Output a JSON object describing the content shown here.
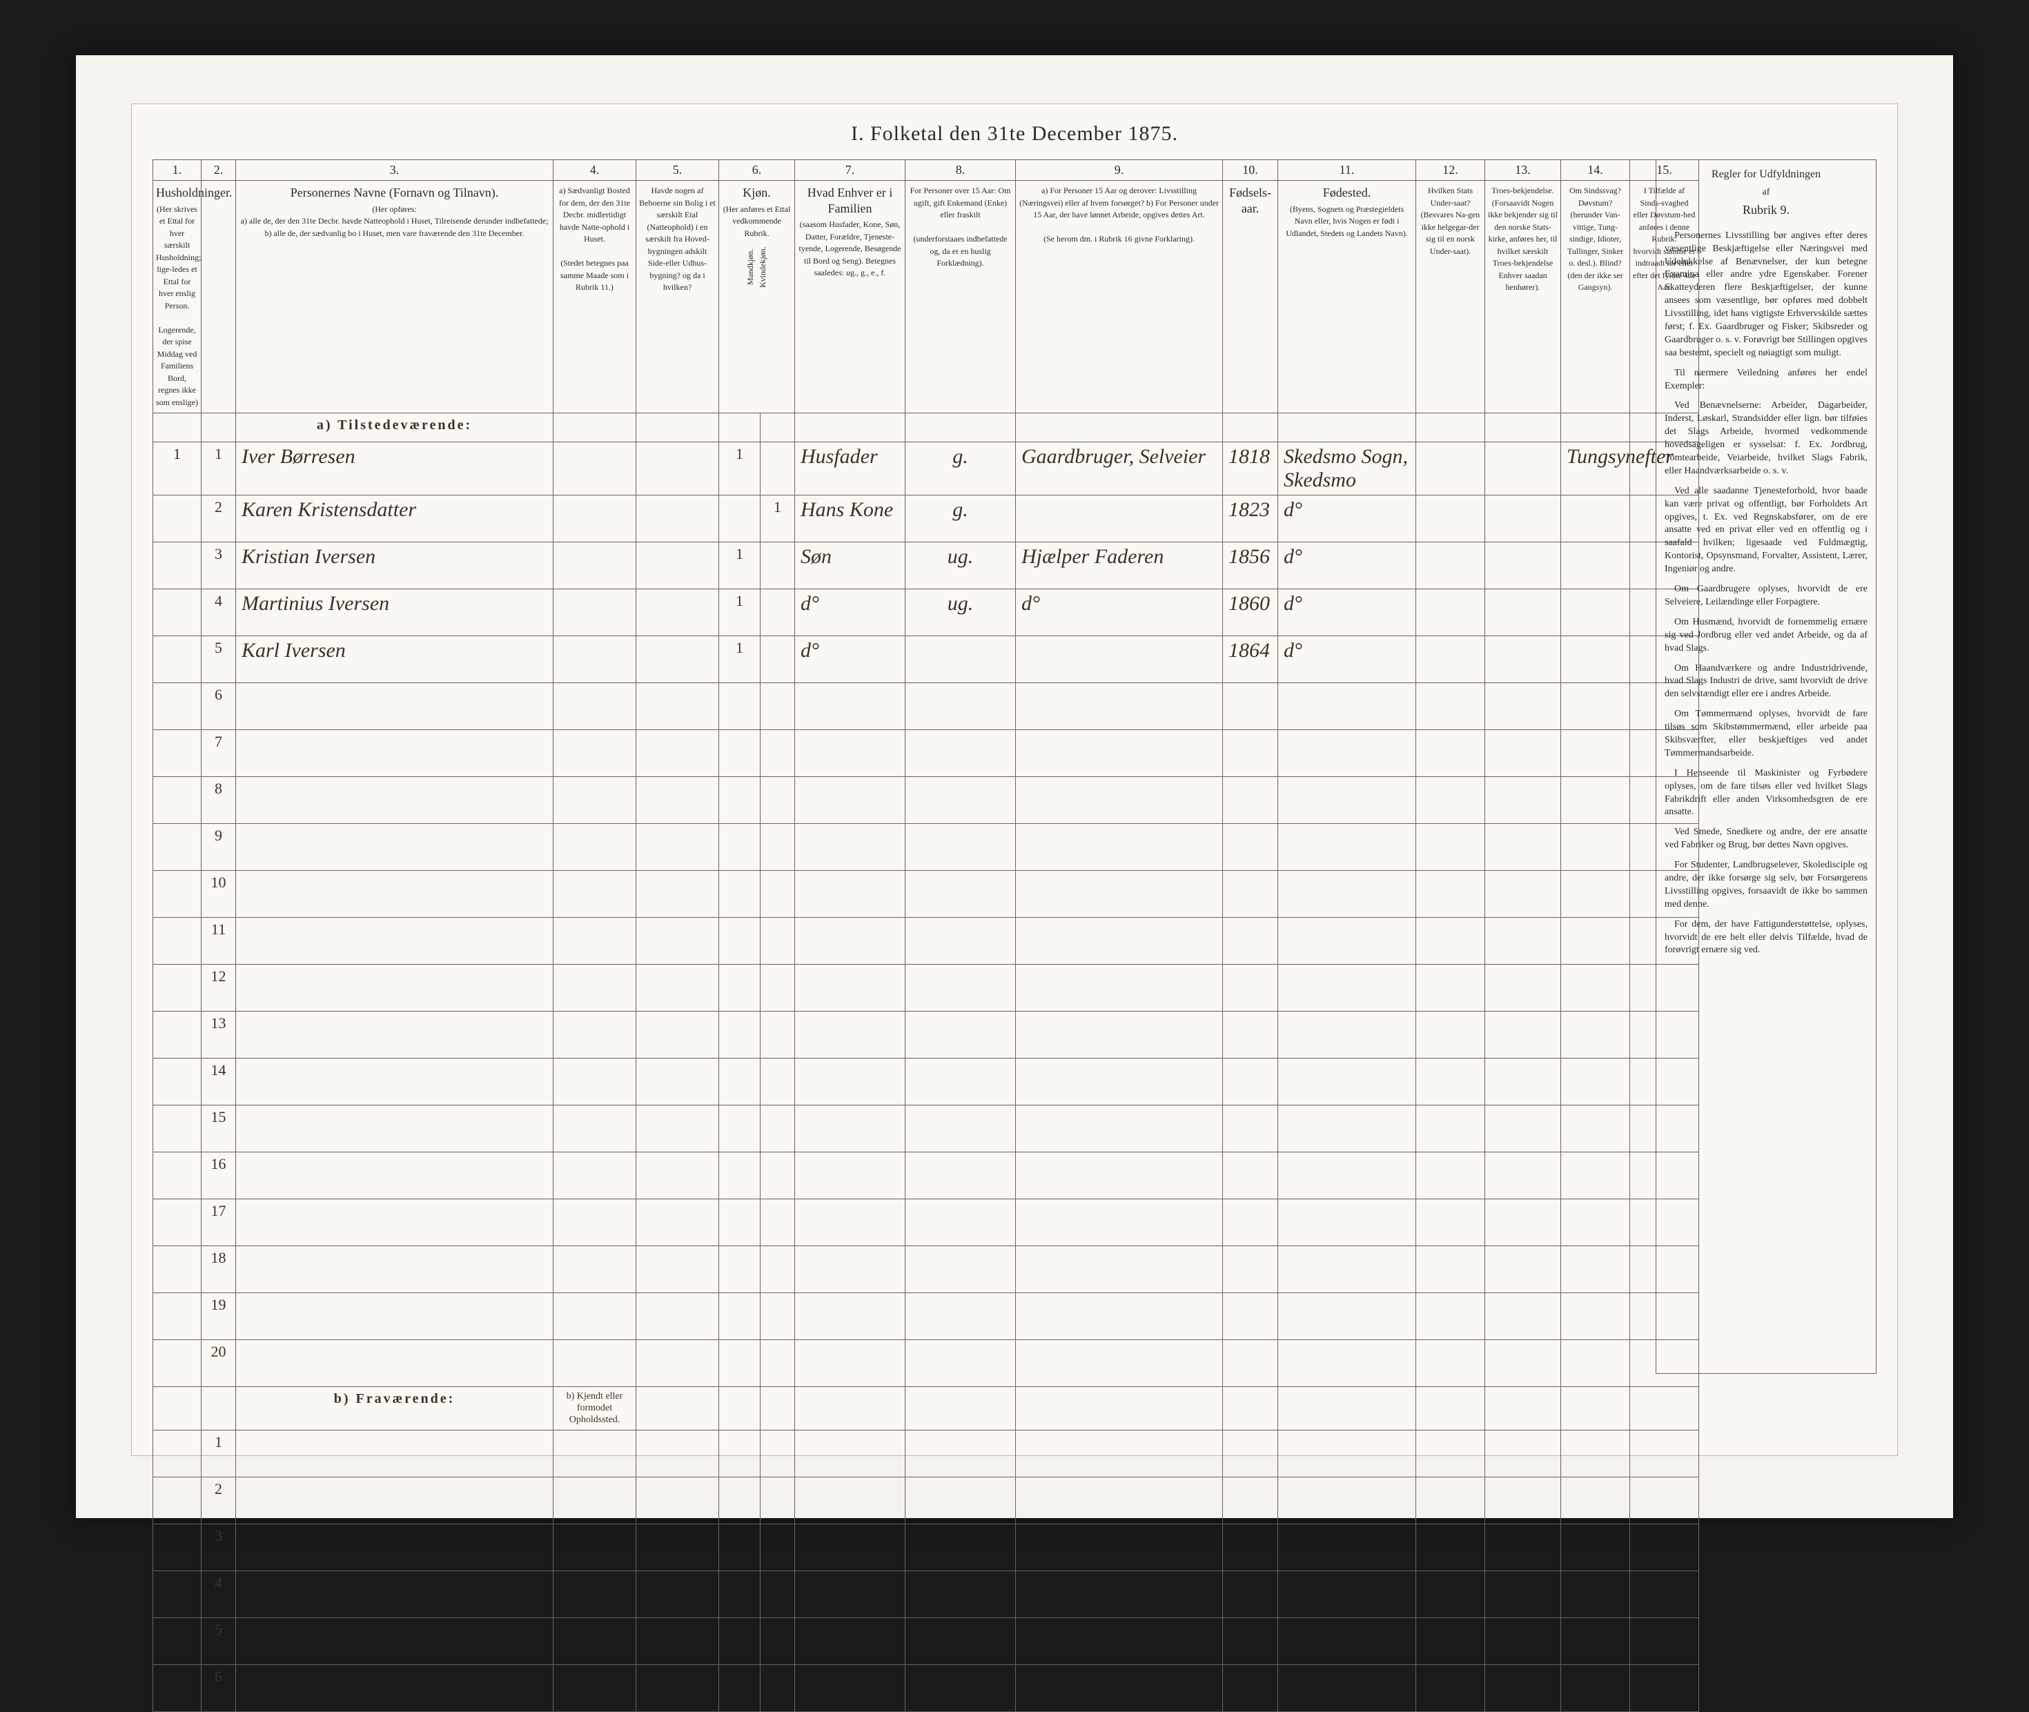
{
  "title": "I.  Folketal den 31te December 1875.",
  "columns": {
    "nums": [
      "1.",
      "2.",
      "3.",
      "4.",
      "5.",
      "6.",
      "7.",
      "8.",
      "9.",
      "10.",
      "11.",
      "12.",
      "13.",
      "14.",
      "15."
    ],
    "widths": [
      70,
      50,
      460,
      120,
      120,
      60,
      50,
      160,
      160,
      300,
      80,
      200,
      100,
      110,
      100,
      100
    ],
    "headers": [
      "Husholdninger.",
      "",
      "Personernes Navne (Fornavn og Tilnavn).",
      "a) Sædvanligt Bosted for dem, der den 31te Decbr. midlertidigt havde Natte-ophold i Huset.",
      "Havde nogen af Beboerne sin Bolig i et særskilt Etal (Natteophold) i en særskilt fra Hoved-bygningen adskilt Side-eller Udhus-bygning? og da i hvilken?",
      "Kjøn.",
      "",
      "Hvad Enhver er i Familien",
      "For Personer over 15 Aar: Om ugift, gift Enkemand (Enke) eller fraskilt",
      "a) For Personer 15 Aar og derover: Livsstilling (Næringsvei) eller af hvem forsørget? b) For Personer under 15 Aar, der have lønnet Arbeide, opgives dettes Art.",
      "Fødsels-aar.",
      "Fødested.",
      "Hvilken Stats Under-saat?",
      "Troes-bekjendelse.",
      "Om Sindssvag? Døvstum?",
      "I Tilfælde af Sinds-svaghed eller Døvstum-hed anføres i denne Rubrik."
    ],
    "sub1": "(Her skrives et Ettal for hver særskilt Husholdning; lige-ledes et Ettal for hver enslig Person.",
    "sub1b": "Logerende, der spise Middag ved Familiens Bord, regnes ikke som enslige)",
    "sub3a": "(Her opføres:",
    "sub3b": "a) alle de, der den 31te Decbr. havde Natteophold i Huset, Tilreisende derunder indbefattede;",
    "sub3c": "b) alle de, der sædvanlig bo i Huset, men vare fraværende den 31te December.",
    "sub4": "(Stedet betegnes paa samme Maade som i Rubrik 11.)",
    "sub6a": "Mandkjøn.",
    "sub6b": "Kvindekjøn.",
    "sub7": "(Her anføres et Ettal vedkommende Rubrik.",
    "sub8": "(saasom Husfader, Kone, Søn, Datter, Forældre, Tjeneste-tyende, Logerende, Besøgende til Bord og Seng). Betegnes saaledes: ug., g., e., f.",
    "sub9": "(underforstaaes indbefattede og, da er en huslig Forklædning).",
    "sub10": "(Se herom dm. i Rubrik 16 givne Forklaring).",
    "sub11": "(Byens, Sognets og Præstegieldets Navn eller, hvis Nogen er født i Udlandet, Stedets og Landets Navn).",
    "sub12": "(Besvares Na-gen ikke helgegar-der sig til en norsk Under-saat).",
    "sub13": "(Forsaavidt Nogen ikke bekjender sig til den norske Stats-kirke, anføres her, til hvilket særskilt Troes-bekjendelse Enhver saadan henhører).",
    "sub14": "(herunder Van-vittige, Tung-sindige, Idioter, Tullinger, Sinker o. desl.). Blind? (den der ikke ser Gangsyn).",
    "sub15": "hvorvidt samme er indtraadt før eller efter det fyldte 4de Aar."
  },
  "sections": {
    "a": "a) Tilstedeværende:",
    "b": "b) Fraværende:",
    "b_col4": "b) Kjendt eller formodet Opholdssted."
  },
  "rows_a": [
    {
      "n1": "1",
      "n2": "1",
      "name": "Iver Børresen",
      "c4": "",
      "c5": "",
      "m": "1",
      "k": "",
      "rel": "Husfader",
      "civ": "g.",
      "occ": "Gaardbruger, Selveier",
      "year": "1818",
      "place": "Skedsmo Sogn, Skedsmo",
      "c12": "",
      "c13": "",
      "c14": "Tungsyn",
      "c15": "efter"
    },
    {
      "n1": "",
      "n2": "2",
      "name": "Karen Kristensdatter",
      "c4": "",
      "c5": "",
      "m": "",
      "k": "1",
      "rel": "Hans Kone",
      "civ": "g.",
      "occ": "",
      "year": "1823",
      "place": "d°",
      "c12": "",
      "c13": "",
      "c14": "",
      "c15": ""
    },
    {
      "n1": "",
      "n2": "3",
      "name": "Kristian Iversen",
      "c4": "",
      "c5": "",
      "m": "1",
      "k": "",
      "rel": "Søn",
      "civ": "ug.",
      "occ": "Hjælper Faderen",
      "year": "1856",
      "place": "d°",
      "c12": "",
      "c13": "",
      "c14": "",
      "c15": ""
    },
    {
      "n1": "",
      "n2": "4",
      "name": "Martinius Iversen",
      "c4": "",
      "c5": "",
      "m": "1",
      "k": "",
      "rel": "d°",
      "civ": "ug.",
      "occ": "d°",
      "year": "1860",
      "place": "d°",
      "c12": "",
      "c13": "",
      "c14": "",
      "c15": ""
    },
    {
      "n1": "",
      "n2": "5",
      "name": "Karl Iversen",
      "c4": "",
      "c5": "",
      "m": "1",
      "k": "",
      "rel": "d°",
      "civ": "",
      "occ": "",
      "year": "1864",
      "place": "d°",
      "c12": "",
      "c13": "",
      "c14": "",
      "c15": ""
    }
  ],
  "blank_a_rows": [
    "6",
    "7",
    "8",
    "9",
    "10",
    "11",
    "12",
    "13",
    "14",
    "15",
    "16",
    "17",
    "18",
    "19",
    "20"
  ],
  "blank_b_rows": [
    "1",
    "2",
    "3",
    "4",
    "5",
    "6"
  ],
  "rules": {
    "head": "Regler for Udfyldningen",
    "sub": "af",
    "col": "Rubrik 9.",
    "paras": [
      "Personernes Livsstilling bør angives efter deres væsentlige Beskjæftigelse eller Næringsvei med Udelukkelse af Benævnelser, der kun betegne Examina eller andre ydre Egenskaber. Forener Skatteyderen flere Beskjæftigelser, der kunne ansees som væsentlige, bør opføres med dobbelt Livsstilling, idet hans vigtigste Erhvervskilde sættes først; f. Ex. Gaardbruger og Fisker; Skibsreder og Gaardbruger o. s. v. Forøvrigt bør Stillingen opgives saa bestemt, specielt og nøiagtigt som muligt.",
      "Til nærmere Veiledning anføres her endel Exempler:",
      "Ved Benævnelserne: Arbeider, Dagarbeider, Inderst, Løskarl, Strandsidder eller lign. bør tilføies det Slags Arbeide, hvormed vedkommende hovedsageligen er sysselsat: f. Ex. Jordbrug, Tomtearbeide, Veiarbeide, hvilket Slags Fabrik, eller Haandværksarbeide o. s. v.",
      "Ved alle saadanne Tjenesteforhold, hvor baade kan være privat og offentligt, bør Forholdets Art opgives, t. Ex. ved Regnskabsfører, om de ere ansatte ved en privat eller ved en offentlig og i saafald hvilken; ligesaade ved Fuldmægtig, Kontorist, Opsynsmand, Forvalter, Assistent, Lærer, Ingeniør og andre.",
      "Om Gaardbrugere oplyses, hvorvidt de ere Selveiere, Leilændinge eller Forpagtere.",
      "Om Husmænd, hvorvidt de fornemmelig ernære sig ved Jordbrug eller ved andet Arbeide, og da af hvad Slags.",
      "Om Haandværkere og andre Industridrivende, hvad Slags Industri de drive, samt hvorvidt de drive den selvstændigt eller ere i andres Arbeide.",
      "Om Tømmermænd oplyses, hvorvidt de fare tilsøs som Skibstømmermænd, eller arbeide paa Skibsværfter, eller beskjæftiges ved andet Tømmermandsarbeide.",
      "I Henseende til Maskinister og Fyrbødere oplyses, om de fare tilsøs eller ved hvilket Slags Fabrikdrift eller anden Virksomhedsgren de ere ansatte.",
      "Ved Smede, Snedkere og andre, der ere ansatte ved Fabriker og Brug, bør dettes Navn opgives.",
      "For Studenter, Landbrugselever, Skoledisciple og andre, der ikke forsørge sig selv, bør Forsørgerens Livsstilling opgives, forsaavidt de ikke bo sammen med denne.",
      "For dem, der have Fattigunderstøttelse, oplyses, hvorvidt de ere helt eller delvis Tilfælde, hvad de forøvrigt ernære sig ved."
    ]
  },
  "style": {
    "page_bg": "#f5f3ed",
    "sheet_bg": "#faf8f2",
    "border_color": "#6b6358",
    "ink": "#2a2a2a",
    "hand_ink": "#3a3228"
  }
}
